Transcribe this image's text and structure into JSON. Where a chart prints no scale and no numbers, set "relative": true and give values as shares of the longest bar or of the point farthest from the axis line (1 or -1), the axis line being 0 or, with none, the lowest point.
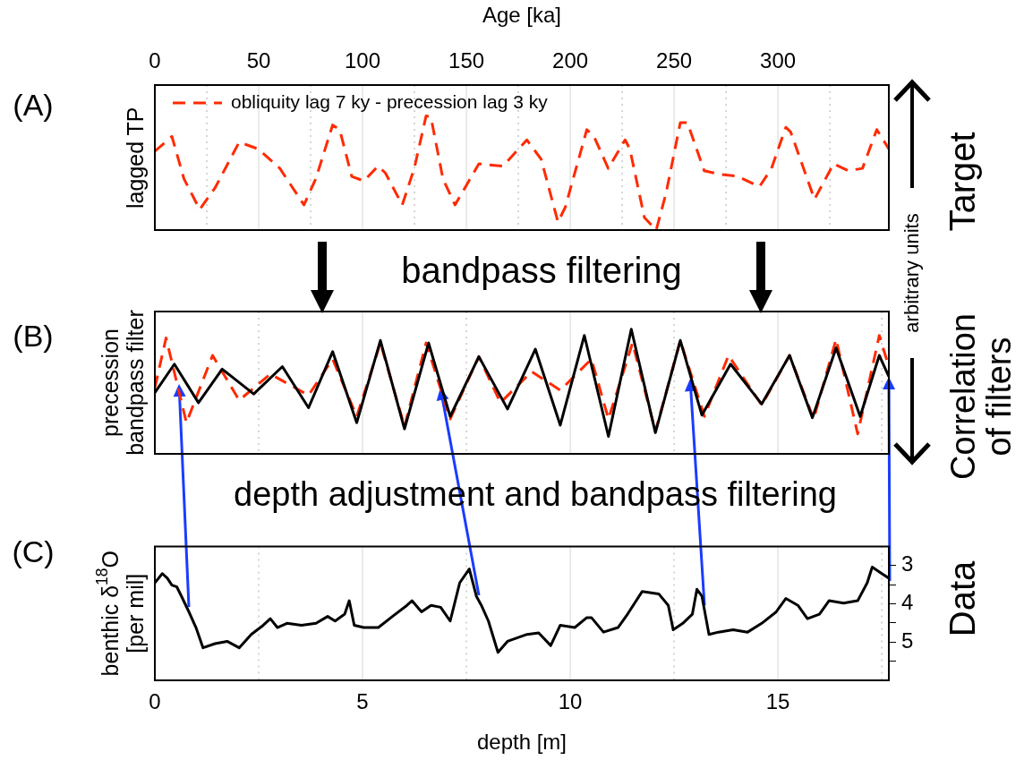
{
  "chart_data": [
    {
      "type": "line",
      "xlabel": "Age [ka]",
      "ylabel": "lagged TP",
      "relative": true,
      "xlim": [
        0,
        353.4
      ],
      "xticks": [
        0,
        {
          "value": 25,
          "label": null
        },
        50,
        {
          "value": 75,
          "label": null
        },
        100,
        {
          "value": 125,
          "label": null
        },
        150,
        {
          "value": 175,
          "label": null
        },
        200,
        {
          "value": 225,
          "label": null
        },
        250,
        {
          "value": 275,
          "label": null
        },
        300,
        {
          "value": 325,
          "label": null
        }
      ],
      "tick_labels": "x",
      "grid": "x",
      "legend": "top left",
      "line_style": "dashed",
      "annotations": [
        "(A)",
        "Target",
        "arbitrary units",
        "bandpass filtering"
      ],
      "series": [
        {
          "name": "obliquity lag 7 ky - precession lag 3 ky",
          "color": "#ff2a00",
          "x": [
            0,
            8.2,
            14.0,
            21.6,
            29.0,
            40.6,
            49.8,
            60.2,
            71.8,
            77.5,
            85.6,
            89.0,
            94.8,
            100.6,
            107.5,
            111.0,
            119.1,
            124.9,
            130.6,
            132.9,
            138.7,
            144.5,
            156.0,
            167.6,
            179.1,
            186.0,
            194.1,
            197.6,
            208.0,
            211.4,
            218.3,
            226.4,
            228.7,
            235.7,
            241.4,
            246.1,
            253.0,
            256.4,
            264.5,
            271.4,
            280.7,
            291.1,
            296.9,
            303.8,
            306.1,
            317.6,
            326.8,
            333.8,
            340.7,
            347.6,
            353.4
          ],
          "values": [
            0.69,
            0.82,
            0.45,
            0.18,
            0.37,
            0.77,
            0.71,
            0.54,
            0.22,
            0.45,
            0.92,
            0.88,
            0.47,
            0.43,
            0.56,
            0.5,
            0.22,
            0.54,
            1,
            0.99,
            0.45,
            0.22,
            0.58,
            0.56,
            0.79,
            0.62,
            0.07,
            0.2,
            0.88,
            0.82,
            0.54,
            0.79,
            0.71,
            0.11,
            0,
            0.32,
            0.94,
            0.94,
            0.52,
            0.49,
            0.47,
            0.38,
            0.54,
            0.9,
            0.86,
            0.27,
            0.58,
            0.52,
            0.54,
            0.88,
            0.71
          ]
        }
      ]
    },
    {
      "type": "line",
      "ylabel": "precession\nbandpass filter",
      "relative": true,
      "xlim": [
        0,
        17.67
      ],
      "xticks": [
        0,
        {
          "value": 2.5,
          "label": null
        },
        5,
        {
          "value": 7.5,
          "label": null
        },
        10,
        {
          "value": 12.5,
          "label": null
        },
        15,
        {
          "value": 17.5,
          "label": null
        }
      ],
      "tick_labels": false,
      "grid": "x",
      "annotations": [
        "(B)",
        "Correlation\nof filters",
        "depth adjustment and bandpass filtering"
      ],
      "series": [
        {
          "color": "#000000",
          "line_style": "solid",
          "x": [
            0,
            0.47,
            1.05,
            1.62,
            2.38,
            3.07,
            3.7,
            4.28,
            4.86,
            5.43,
            6.01,
            6.59,
            7.11,
            7.8,
            8.49,
            9.16,
            9.76,
            10.34,
            10.92,
            11.47,
            12.05,
            12.65,
            13.17,
            13.86,
            14.61,
            15.28,
            15.83,
            16.4,
            16.98,
            17.44,
            17.67
          ],
          "values": [
            0.49,
            0.72,
            0.41,
            0.68,
            0.48,
            0.7,
            0.37,
            0.82,
            0.25,
            0.91,
            0.2,
            0.89,
            0.3,
            0.78,
            0.36,
            0.84,
            0.23,
            0.95,
            0.14,
            1,
            0.17,
            0.91,
            0.31,
            0.72,
            0.4,
            0.79,
            0.29,
            0.85,
            0.3,
            0.79,
            0.62
          ]
        },
        {
          "color": "#ff2a00",
          "line_style": "dashed",
          "x": [
            0,
            0.27,
            0.76,
            1.39,
            2.03,
            2.78,
            3.7,
            4.28,
            4.86,
            5.43,
            6.01,
            6.53,
            7.11,
            7.8,
            8.32,
            9.07,
            9.76,
            10.51,
            10.92,
            11.5,
            12.05,
            12.65,
            13.23,
            13.81,
            14.61,
            15.28,
            15.86,
            16.4,
            16.92,
            17.44,
            17.67
          ],
          "values": [
            0.53,
            0.93,
            0.25,
            0.79,
            0.43,
            0.64,
            0.47,
            0.76,
            0.3,
            0.89,
            0.22,
            0.89,
            0.28,
            0.78,
            0.41,
            0.66,
            0.51,
            0.76,
            0.28,
            0.89,
            0.18,
            0.91,
            0.3,
            0.79,
            0.39,
            0.79,
            0.28,
            0.92,
            0.16,
            0.95,
            0.7
          ]
        }
      ]
    },
    {
      "type": "line",
      "xlabel": "depth [m]",
      "ylabel": "benthic δ$^{18}$O\n[per mil]",
      "xlim": [
        0,
        17.67
      ],
      "xticks": [
        0,
        {
          "value": 2.5,
          "label": null
        },
        5,
        {
          "value": 7.5,
          "label": null
        },
        10,
        {
          "value": 12.5,
          "label": null
        },
        15,
        {
          "value": 17.5,
          "label": null
        }
      ],
      "ylim": [
        6,
        2.5
      ],
      "yticks": [
        3,
        {
          "value": 3.5,
          "label": null
        },
        4,
        {
          "value": 4.5,
          "label": null
        },
        5,
        {
          "value": 5.5,
          "label": null
        }
      ],
      "grid": "x",
      "annotations": [
        "(C)",
        "Data"
      ],
      "series": [
        {
          "color": "#000000",
          "x": [
            0,
            0.18,
            0.3,
            0.41,
            0.53,
            0.64,
            0.82,
            0.99,
            1.16,
            1.45,
            1.74,
            2.03,
            2.32,
            2.61,
            2.78,
            2.95,
            3.18,
            3.53,
            3.88,
            4.16,
            4.34,
            4.57,
            4.68,
            4.8,
            5.03,
            5.38,
            5.72,
            6.07,
            6.19,
            6.42,
            6.65,
            6.88,
            7.11,
            7.34,
            7.57,
            7.74,
            7.86,
            8.03,
            8.26,
            8.49,
            8.96,
            9.24,
            9.53,
            9.76,
            10.11,
            10.4,
            10.51,
            10.8,
            11.15,
            11.38,
            11.73,
            12.13,
            12.36,
            12.48,
            12.71,
            12.94,
            13.05,
            13.17,
            13.34,
            13.57,
            13.92,
            14.27,
            14.61,
            14.96,
            15.19,
            15.48,
            15.71,
            16.0,
            16.23,
            16.58,
            16.92,
            17.15,
            17.27,
            17.5,
            17.67
          ],
          "values": [
            3.45,
            3.21,
            3.33,
            3.51,
            3.56,
            3.8,
            4.21,
            4.62,
            5.15,
            5.04,
            4.98,
            5.15,
            4.8,
            4.56,
            4.39,
            4.62,
            4.51,
            4.56,
            4.51,
            4.33,
            4.45,
            4.27,
            3.92,
            4.56,
            4.62,
            4.62,
            4.33,
            4.04,
            3.92,
            4.21,
            4.04,
            4.09,
            4.45,
            3.45,
            3.09,
            3.8,
            4.04,
            4.45,
            5.27,
            4.98,
            4.8,
            4.76,
            5.09,
            4.56,
            4.62,
            4.36,
            4.36,
            4.74,
            4.62,
            4.27,
            3.68,
            3.74,
            4.04,
            4.68,
            4.51,
            4.27,
            3.62,
            3.8,
            4.8,
            4.74,
            4.68,
            4.74,
            4.51,
            4.21,
            3.86,
            4.04,
            4.39,
            4.27,
            3.92,
            3.98,
            3.92,
            3.45,
            3.04,
            3.21,
            3.33
          ]
        }
      ]
    }
  ]
}
